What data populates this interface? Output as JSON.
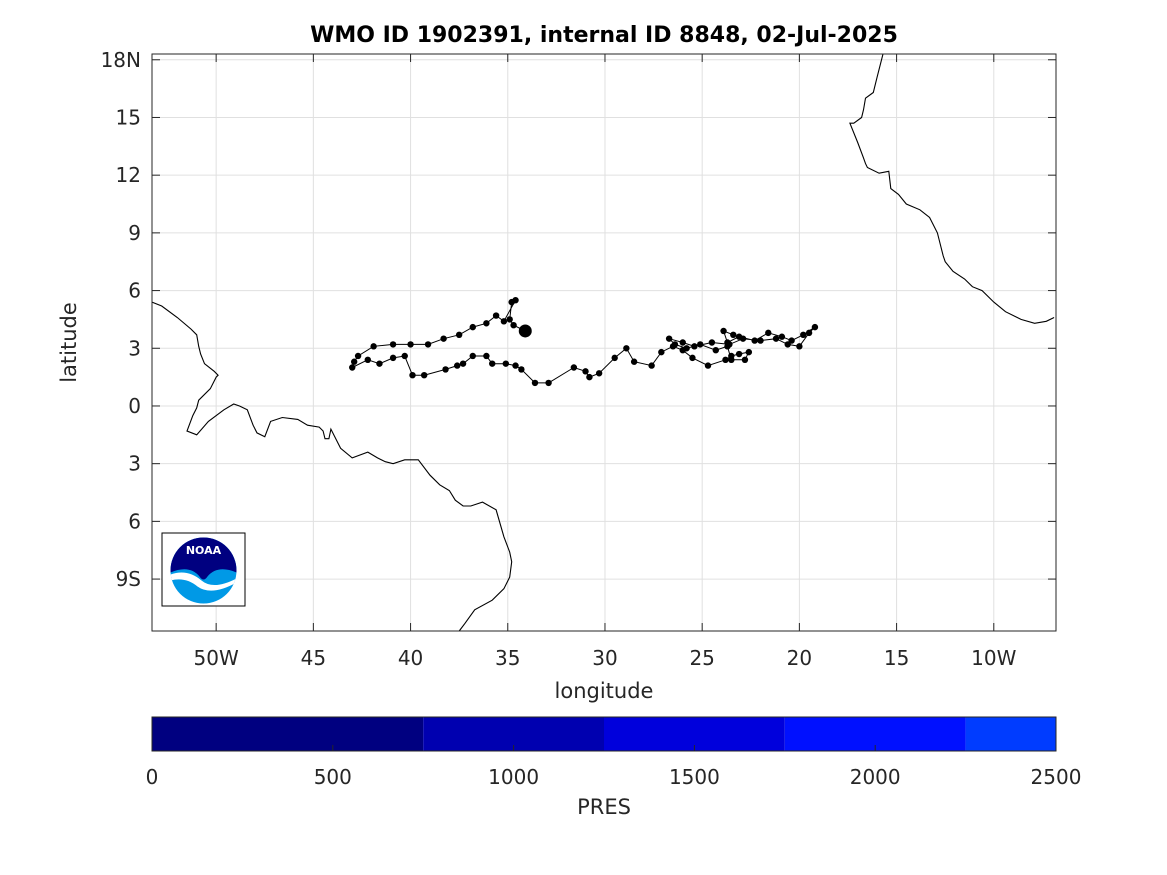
{
  "title": "WMO ID 1902391, internal ID 8848, 02-Jul-2025",
  "map": {
    "xlabel": "longitude",
    "ylabel": "latitude",
    "xlim": [
      -53.3,
      -6.8
    ],
    "ylim": [
      -11.7,
      18.3
    ],
    "x_ticks": [
      {
        "value": -50,
        "label": "50W"
      },
      {
        "value": -45,
        "label": "45"
      },
      {
        "value": -40,
        "label": "40"
      },
      {
        "value": -35,
        "label": "35"
      },
      {
        "value": -30,
        "label": "30"
      },
      {
        "value": -25,
        "label": "25"
      },
      {
        "value": -20,
        "label": "20"
      },
      {
        "value": -15,
        "label": "15"
      },
      {
        "value": -10,
        "label": "10W"
      }
    ],
    "y_ticks": [
      {
        "value": 18,
        "label": "18N"
      },
      {
        "value": 15,
        "label": "15"
      },
      {
        "value": 12,
        "label": "12"
      },
      {
        "value": 9,
        "label": "9"
      },
      {
        "value": 6,
        "label": "6"
      },
      {
        "value": 3,
        "label": "3"
      },
      {
        "value": 0,
        "label": "0"
      },
      {
        "value": -3,
        "label": "3"
      },
      {
        "value": -6,
        "label": "6"
      },
      {
        "value": -9,
        "label": "9S"
      }
    ],
    "grid": true,
    "track_color": "#000000",
    "coastline_color": "#000000",
    "logo": {
      "text": "NOAA",
      "top_color": "#000080",
      "bottom_color": "#0099e6"
    }
  },
  "chart_data": {
    "type": "scatter",
    "series": [
      {
        "x": [
          -34.1,
          -34.7,
          -34.9,
          -34.8,
          -34.6,
          -35.2,
          -35.6,
          -36.1,
          -36.8,
          -37.5,
          -38.3,
          -39.1,
          -40.0,
          -40.9,
          -41.9,
          -42.7,
          -42.9,
          -43.0,
          -42.2,
          -41.6,
          -40.9,
          -40.3,
          -39.9,
          -39.3,
          -38.2,
          -37.6,
          -37.3,
          -36.8,
          -36.1,
          -35.8,
          -35.1,
          -34.6,
          -34.3,
          -33.6,
          -32.9,
          -31.6,
          -31.0,
          -30.8,
          -30.3,
          -29.5,
          -28.9,
          -28.5,
          -27.6,
          -27.1,
          -26.5,
          -26.0,
          -25.5,
          -24.7,
          -23.8,
          -23.5,
          -23.1,
          -22.6,
          -22.8,
          -23.5,
          -23.7,
          -24.3,
          -25.1,
          -25.8,
          -26.4,
          -26.7,
          -26.0,
          -25.4,
          -24.5,
          -23.6,
          -22.9,
          -22.0,
          -21.2,
          -20.6,
          -20.0,
          -19.5,
          -19.2,
          -19.8,
          -20.4,
          -20.9,
          -21.6,
          -22.3,
          -23.1,
          -23.7,
          -23.9,
          -23.4
        ],
        "y": [
          3.9,
          4.2,
          4.5,
          5.4,
          5.5,
          4.4,
          4.7,
          4.3,
          4.1,
          3.7,
          3.5,
          3.2,
          3.2,
          3.2,
          3.1,
          2.6,
          2.3,
          2.0,
          2.4,
          2.2,
          2.5,
          2.6,
          1.6,
          1.6,
          1.9,
          2.1,
          2.2,
          2.6,
          2.6,
          2.2,
          2.2,
          2.1,
          1.9,
          1.2,
          1.2,
          2.0,
          1.8,
          1.5,
          1.7,
          2.5,
          3.0,
          2.3,
          2.1,
          2.8,
          3.1,
          2.9,
          2.5,
          2.1,
          2.4,
          2.6,
          2.7,
          2.8,
          2.4,
          2.4,
          3.1,
          2.9,
          3.2,
          3.0,
          3.2,
          3.5,
          3.3,
          3.1,
          3.3,
          3.2,
          3.5,
          3.4,
          3.5,
          3.2,
          3.1,
          3.8,
          4.1,
          3.7,
          3.4,
          3.6,
          3.8,
          3.4,
          3.6,
          3.3,
          3.9,
          3.7
        ]
      }
    ],
    "latest_position": {
      "x": -34.1,
      "y": 3.9
    },
    "coastline_south_america": {
      "x": [
        -53.3,
        -52.8,
        -52.0,
        -51.3,
        -51.0,
        -50.9,
        -50.8,
        -50.6,
        -50.1,
        -49.9,
        -50.0,
        -50.3,
        -50.9,
        -51.0,
        -51.2,
        -51.5,
        -51.0,
        -50.4,
        -49.6,
        -49.1,
        -48.8,
        -48.4,
        -48.1,
        -47.9,
        -47.5,
        -47.2,
        -46.6,
        -45.8,
        -45.3,
        -44.7,
        -44.5,
        -44.4,
        -44.2,
        -44.1,
        -43.6,
        -43.0,
        -42.2,
        -41.7,
        -41.3,
        -40.9,
        -40.3,
        -39.9,
        -39.6,
        -39.0,
        -38.5,
        -38.0,
        -37.7,
        -37.3,
        -36.9,
        -36.3,
        -35.6,
        -35.2,
        -34.9,
        -34.8,
        -34.9,
        -35.2,
        -35.8,
        -36.7,
        -37.2,
        -37.5
      ],
      "y": [
        5.4,
        5.2,
        4.6,
        4.0,
        3.7,
        3.1,
        2.7,
        2.2,
        1.8,
        1.6,
        1.5,
        0.9,
        0.3,
        -0.1,
        -0.5,
        -1.3,
        -1.5,
        -0.8,
        -0.2,
        0.1,
        0.0,
        -0.2,
        -1.0,
        -1.4,
        -1.6,
        -0.8,
        -0.6,
        -0.7,
        -1.0,
        -1.1,
        -1.3,
        -1.7,
        -1.7,
        -1.2,
        -2.2,
        -2.7,
        -2.4,
        -2.7,
        -2.9,
        -3.0,
        -2.8,
        -2.8,
        -2.8,
        -3.6,
        -4.1,
        -4.4,
        -4.9,
        -5.2,
        -5.2,
        -5.0,
        -5.4,
        -6.8,
        -7.6,
        -8.1,
        -8.9,
        -9.5,
        -10.1,
        -10.6,
        -11.3,
        -11.7
      ]
    },
    "coastline_africa": {
      "x": [
        -15.7,
        -16.0,
        -16.2,
        -16.6,
        -16.7,
        -16.8,
        -17.2,
        -17.4,
        -17.0,
        -16.7,
        -16.6,
        -16.5,
        -15.9,
        -15.4,
        -15.3,
        -14.9,
        -14.5,
        -13.8,
        -13.3,
        -12.9,
        -12.6,
        -12.5,
        -12.1,
        -11.5,
        -11.1,
        -10.6,
        -10.0,
        -9.4,
        -8.6,
        -7.9,
        -7.3,
        -6.9
      ],
      "y": [
        18.3,
        17.1,
        16.3,
        16.0,
        15.4,
        15.0,
        14.7,
        14.7,
        13.7,
        12.9,
        12.6,
        12.4,
        12.1,
        12.2,
        11.3,
        11.0,
        10.5,
        10.2,
        9.8,
        9.0,
        7.8,
        7.5,
        7.0,
        6.6,
        6.2,
        6.0,
        5.4,
        4.9,
        4.5,
        4.3,
        4.4,
        4.6
      ]
    }
  },
  "colorbar": {
    "label": "PRES",
    "ticks": [
      {
        "value": 0,
        "label": "0"
      },
      {
        "value": 500,
        "label": "500"
      },
      {
        "value": 1000,
        "label": "1000"
      },
      {
        "value": 1500,
        "label": "1500"
      },
      {
        "value": 2000,
        "label": "2000"
      },
      {
        "value": 2500,
        "label": "2500"
      }
    ],
    "range": [
      0,
      2500
    ],
    "segments": [
      {
        "from": 0,
        "to": 750,
        "color": "#000080"
      },
      {
        "from": 750,
        "to": 1250,
        "color": "#0000b0"
      },
      {
        "from": 1250,
        "to": 1750,
        "color": "#0000dc"
      },
      {
        "from": 1750,
        "to": 2250,
        "color": "#0010ff"
      },
      {
        "from": 2250,
        "to": 2500,
        "color": "#003cff"
      }
    ]
  }
}
